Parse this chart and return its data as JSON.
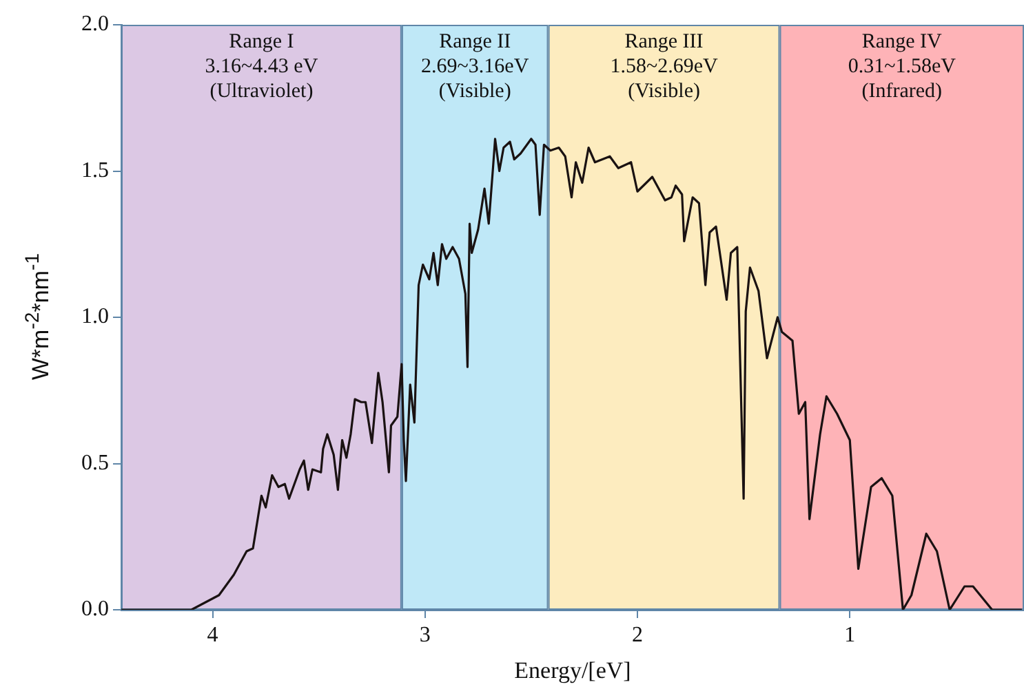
{
  "chart_data": {
    "type": "line",
    "xlabel": "Energy/[eV]",
    "ylabel": "W*m$^{-2}$*nm$^{-1}$",
    "xlim": [
      4.43,
      0.18
    ],
    "xticks": [
      4,
      3,
      2,
      1
    ],
    "ylim": [
      0,
      2
    ],
    "yticks": [
      {
        "value": 0,
        "label": "0.0"
      },
      {
        "value": 0.5,
        "label": "0.5"
      },
      {
        "value": 1,
        "label": "1.0"
      },
      {
        "value": 1.5,
        "label": "1.5"
      },
      {
        "value": 2,
        "label": "2.0"
      }
    ],
    "grid": false,
    "legend": false,
    "marker": "none",
    "line_style": "solid",
    "bands": [
      {
        "axis": "x",
        "from": 4.43,
        "to": 3.11,
        "label": "Range I\n3.16~4.43 eV\n(Ultraviolet)",
        "color": "#dcc8e4"
      },
      {
        "axis": "x",
        "from": 3.11,
        "to": 2.42,
        "label": "Range II\n2.69~3.16eV\n(Visible)",
        "color": "#bfe8f7"
      },
      {
        "axis": "x",
        "from": 2.42,
        "to": 1.33,
        "label": "Range III\n1.58~2.69eV\n(Visible)",
        "color": "#fdecbf"
      },
      {
        "axis": "x",
        "from": 1.33,
        "to": 0.18,
        "label": "Range IV\n0.31~1.58eV\n(Infrared)",
        "color": "#feb3b7"
      }
    ],
    "series": [
      {
        "color": "#1a1212",
        "x": [
          4.43,
          4.1,
          3.97,
          3.9,
          3.84,
          3.81,
          3.77,
          3.75,
          3.72,
          3.69,
          3.66,
          3.64,
          3.59,
          3.57,
          3.55,
          3.53,
          3.49,
          3.48,
          3.46,
          3.43,
          3.41,
          3.39,
          3.37,
          3.35,
          3.33,
          3.3,
          3.28,
          3.25,
          3.22,
          3.2,
          3.17,
          3.16,
          3.13,
          3.11,
          3.1,
          3.09,
          3.07,
          3.05,
          3.03,
          3.01,
          2.98,
          2.96,
          2.94,
          2.92,
          2.9,
          2.87,
          2.84,
          2.81,
          2.8,
          2.79,
          2.78,
          2.75,
          2.72,
          2.7,
          2.68,
          2.67,
          2.65,
          2.63,
          2.6,
          2.58,
          2.55,
          2.5,
          2.48,
          2.46,
          2.44,
          2.41,
          2.37,
          2.34,
          2.31,
          2.29,
          2.26,
          2.23,
          2.2,
          2.13,
          2.09,
          2.03,
          2.0,
          1.93,
          1.87,
          1.84,
          1.82,
          1.79,
          1.78,
          1.74,
          1.71,
          1.68,
          1.66,
          1.63,
          1.58,
          1.56,
          1.53,
          1.5,
          1.49,
          1.47,
          1.43,
          1.39,
          1.34,
          1.32,
          1.27,
          1.24,
          1.21,
          1.19,
          1.14,
          1.11,
          1.06,
          1.0,
          0.96,
          0.9,
          0.85,
          0.8,
          0.75,
          0.71,
          0.64,
          0.59,
          0.53,
          0.46,
          0.42,
          0.33,
          0.19
        ],
        "values": [
          0,
          0,
          0.05,
          0.12,
          0.2,
          0.21,
          0.39,
          0.35,
          0.46,
          0.42,
          0.43,
          0.38,
          0.48,
          0.51,
          0.41,
          0.48,
          0.47,
          0.55,
          0.6,
          0.53,
          0.41,
          0.58,
          0.52,
          0.6,
          0.72,
          0.71,
          0.71,
          0.57,
          0.81,
          0.71,
          0.47,
          0.63,
          0.66,
          0.84,
          0.58,
          0.44,
          0.77,
          0.64,
          1.11,
          1.18,
          1.13,
          1.22,
          1.11,
          1.25,
          1.2,
          1.24,
          1.2,
          1.08,
          0.83,
          1.32,
          1.22,
          1.3,
          1.44,
          1.32,
          1.51,
          1.61,
          1.5,
          1.58,
          1.6,
          1.54,
          1.56,
          1.61,
          1.59,
          1.35,
          1.59,
          1.57,
          1.58,
          1.55,
          1.41,
          1.53,
          1.46,
          1.58,
          1.53,
          1.55,
          1.51,
          1.53,
          1.43,
          1.48,
          1.4,
          1.41,
          1.45,
          1.42,
          1.26,
          1.41,
          1.39,
          1.11,
          1.29,
          1.31,
          1.06,
          1.22,
          1.24,
          0.38,
          1.02,
          1.17,
          1.09,
          0.86,
          1.0,
          0.95,
          0.92,
          0.67,
          0.71,
          0.31,
          0.6,
          0.73,
          0.67,
          0.58,
          0.14,
          0.42,
          0.45,
          0.39,
          0,
          0.05,
          0.26,
          0.2,
          0,
          0.08,
          0.08,
          0,
          0
        ]
      }
    ]
  }
}
